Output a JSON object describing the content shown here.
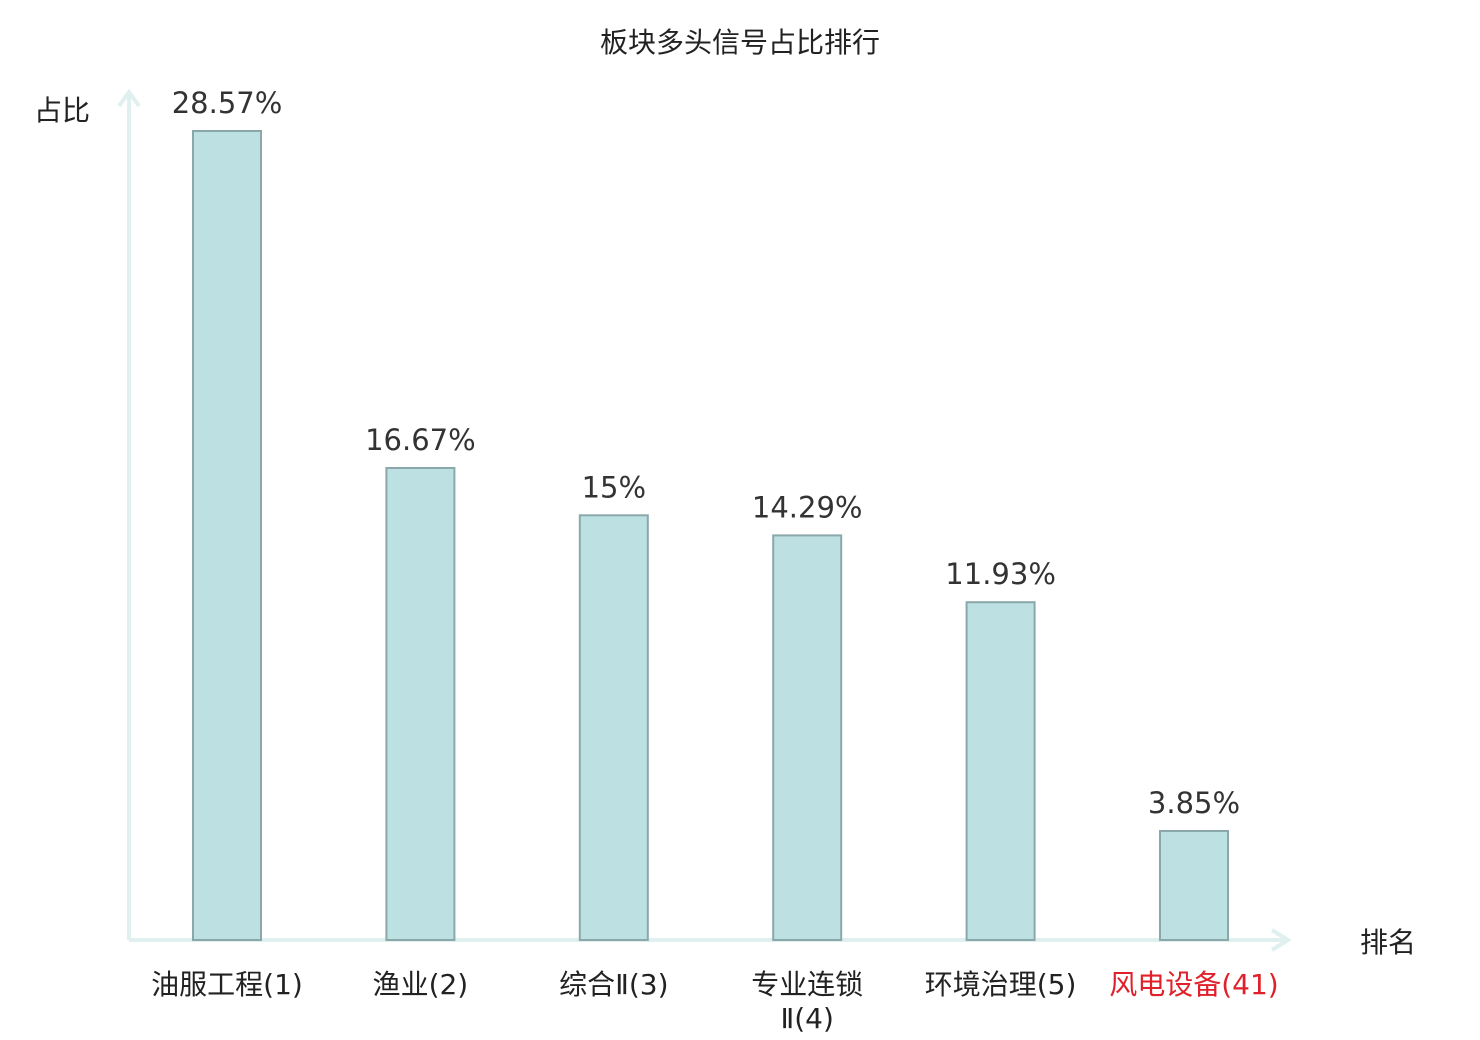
{
  "chart_data": {
    "type": "bar",
    "title": "板块多头信号占比排行",
    "ylabel": "占比",
    "xlabel": "排名",
    "categories": [
      {
        "lines": [
          "油服工程(1)"
        ],
        "highlight": false
      },
      {
        "lines": [
          "渔业(2)"
        ],
        "highlight": false
      },
      {
        "lines": [
          "综合Ⅱ(3)"
        ],
        "highlight": false
      },
      {
        "lines": [
          "专业连锁",
          "Ⅱ(4)"
        ],
        "highlight": false
      },
      {
        "lines": [
          "环境治理(5)"
        ],
        "highlight": false
      },
      {
        "lines": [
          "风电设备(41)"
        ],
        "highlight": true
      }
    ],
    "values": [
      28.57,
      16.67,
      15,
      14.29,
      11.93,
      3.85
    ],
    "value_labels": [
      "28.57%",
      "16.67%",
      "15%",
      "14.29%",
      "11.93%",
      "3.85%"
    ],
    "ylim": [
      0,
      30
    ],
    "grid": false,
    "colors": {
      "bar_fill": "#bde0e3",
      "bar_stroke": "#8aa8aa",
      "axis": "#dff0ee",
      "highlight_text": "#e0202a",
      "normal_text": "#222222"
    }
  }
}
